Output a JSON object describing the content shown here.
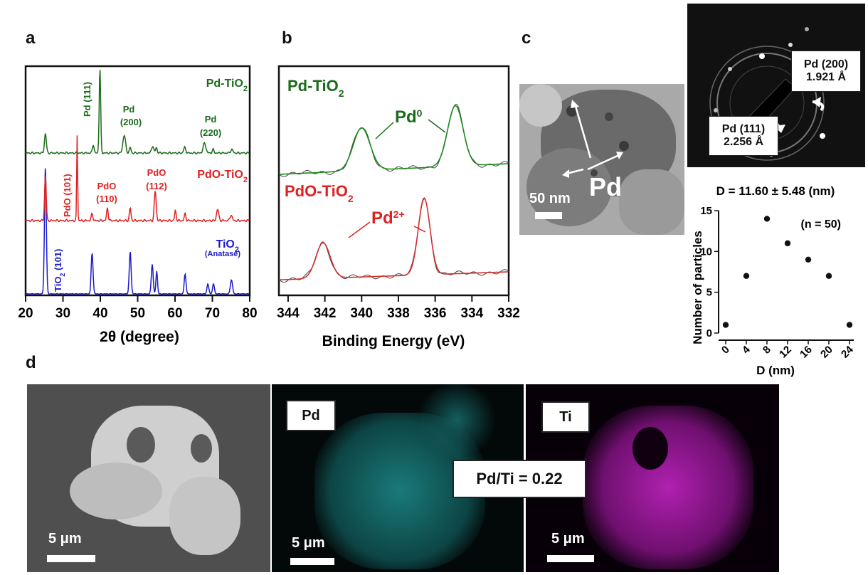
{
  "panel_labels": {
    "a": "a",
    "b": "b",
    "c": "c",
    "d": "d"
  },
  "xrd": {
    "xlabel": "2θ (degree)",
    "x_ticks": [
      "20",
      "30",
      "40",
      "50",
      "60",
      "70",
      "80"
    ],
    "series_labels": {
      "pd": [
        "Pd-TiO",
        "2"
      ],
      "pdo": [
        "PdO-TiO",
        "2"
      ],
      "tio2": [
        "TiO",
        "2"
      ],
      "anatase": "(Anatase)"
    },
    "peak_labels": {
      "pd111": "Pd (111)",
      "pd200_a": "Pd",
      "pd200_b": "(200)",
      "pd220_a": "Pd",
      "pd220_b": "(220)",
      "pdo101": "PdO (101)",
      "pdo110_a": "PdO",
      "pdo110_b": "(110)",
      "pdo112_a": "PdO",
      "pdo112_b": "(112)",
      "tio2_101_a": "TiO",
      "tio2_101_sub": "2",
      "tio2_101_b": " (101)"
    },
    "colors": {
      "pd": "#1a6b1a",
      "pdo": "#e02020",
      "tio2": "#1a1acc"
    }
  },
  "xps": {
    "xlabel": "Binding Energy (eV)",
    "x_ticks": [
      "344",
      "342",
      "340",
      "338",
      "336",
      "334",
      "332"
    ],
    "series_labels": {
      "pd": [
        "Pd-TiO",
        "2"
      ],
      "pdo": [
        "PdO-TiO",
        "2"
      ]
    },
    "peak_labels": {
      "pd0": "Pd",
      "pd0_sup": "0",
      "pd2": "Pd",
      "pd2_sup": "2+"
    }
  },
  "tem": {
    "scale": "50 nm",
    "pd_label": "Pd",
    "saed_pd200_a": "Pd (200)",
    "saed_pd200_b": "1.921 Å",
    "saed_pd111_a": "Pd (111)",
    "saed_pd111_b": "2.256 Å"
  },
  "chart_data": {
    "type": "scatter",
    "title": "D = 11.60 ± 5.48 (nm)",
    "xlabel": "D (nm)",
    "ylabel": "Number of particles",
    "annotation": "(n = 50)",
    "x": [
      0,
      4,
      8,
      12,
      16,
      20,
      24
    ],
    "y": [
      1,
      7,
      14,
      11,
      9,
      7,
      1
    ],
    "xlim": [
      0,
      24
    ],
    "ylim": [
      0,
      15
    ],
    "x_ticks": [
      0,
      4,
      8,
      12,
      16,
      20,
      24
    ],
    "y_ticks": [
      0,
      5,
      10,
      15
    ]
  },
  "eds": {
    "scale": "5 μm",
    "pd_label": "Pd",
    "ti_label": "Ti",
    "ratio": "Pd/Ti = 0.22"
  }
}
